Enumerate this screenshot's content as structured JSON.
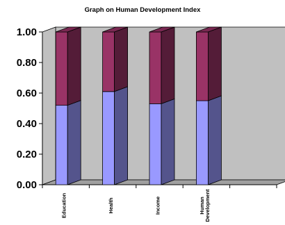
{
  "chart_data": {
    "type": "bar",
    "stacked": true,
    "three_d": true,
    "title": "Graph on Human Development Index",
    "xlabel": "",
    "ylabel": "",
    "categories": [
      "Education",
      "Health",
      "Income",
      "Human Development"
    ],
    "series": [
      {
        "values": [
          0.52,
          0.61,
          0.53,
          0.55
        ]
      },
      {
        "values": [
          0.48,
          0.39,
          0.47,
          0.45
        ]
      }
    ],
    "ylim": [
      0,
      1
    ],
    "ytick_labels": [
      "0.00",
      "0.20",
      "0.40",
      "0.60",
      "0.80",
      "1.00"
    ],
    "category_slots": 5,
    "grid": false,
    "legend": "none",
    "colors": {
      "series_0_front": "#9999ff",
      "series_0_side": "#54548c",
      "series_0_top": "#7878cc",
      "series_1_front": "#993366",
      "series_1_side": "#541c38",
      "series_1_top": "#7a2952",
      "wall": "#c0c0c0",
      "floor": "#a0a0a0",
      "outline": "#000000"
    }
  }
}
